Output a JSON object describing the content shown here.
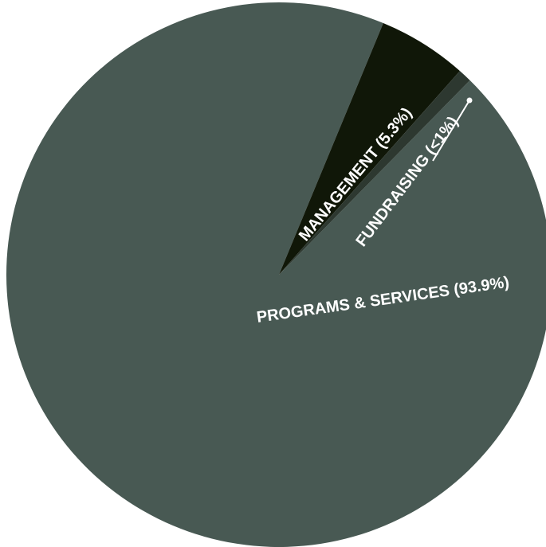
{
  "chart_data": {
    "type": "pie",
    "title": "",
    "legend": "none",
    "slices": [
      {
        "label": "PROGRAMS & SERVICES (93.9%)",
        "value": 93.9,
        "color": "#485953"
      },
      {
        "label": "MANAGEMENT  (5.3%)",
        "value": 5.3,
        "color": "#101708"
      },
      {
        "label": "FUNDRAISING (<1%)",
        "value": 0.8,
        "color": "#2d3830"
      }
    ]
  }
}
